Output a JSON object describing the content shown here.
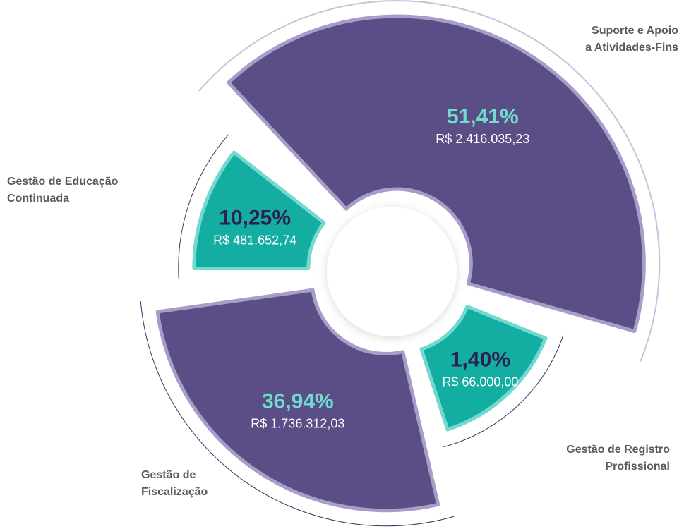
{
  "chart_data": {
    "type": "pie",
    "categories": [
      "Suporte e Apoio\na Atividades-Fins",
      "Gestão de Registro\nProfissional",
      "Gestão de\nFiscalização",
      "Gestão de Educação\nContinuada"
    ],
    "values": [
      51.41,
      1.4,
      36.94,
      10.25
    ],
    "value_labels": [
      "51,41%",
      "1,40%",
      "36,94%",
      "10,25%"
    ],
    "amounts": [
      2416035.23,
      66000.0,
      1736312.03,
      481652.74
    ],
    "amount_labels": [
      "R$ 2.416.035,23",
      "R$ 66.000,00",
      "R$ 1.736.312,03",
      "R$ 481.652,74"
    ],
    "colors": [
      "#5b4e87",
      "#13ada2",
      "#5b4e87",
      "#13ada2"
    ]
  }
}
